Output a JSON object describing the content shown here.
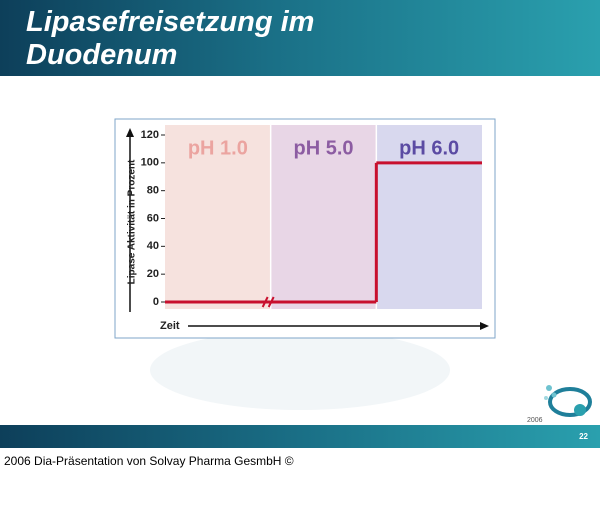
{
  "slide": {
    "title": "Lipasefreisetzung im Duodenum",
    "page_number": "22",
    "footer": "2006 Dia-Präsentation von Solvay Pharma GesmbH ©",
    "logo_year": "2006"
  },
  "chart_data": {
    "type": "step",
    "ylabel": "Lipase Aktivität in Prozent",
    "xlabel": "Zeit",
    "categories": [
      "pH 1.0",
      "pH 5.0",
      "pH 6.0"
    ],
    "band_colors": [
      "#f6e2de",
      "#e8d6e6",
      "#d8d8ee"
    ],
    "label_colors": [
      "#eba4a0",
      "#8c5ca2",
      "#5b4ba3"
    ],
    "series": [
      {
        "name": "Lipase",
        "color": "#c8102e",
        "values": [
          0,
          0,
          100
        ]
      }
    ],
    "ylim": [
      0,
      120
    ],
    "yticks": [
      0,
      20,
      40,
      60,
      80,
      100,
      120
    ]
  }
}
